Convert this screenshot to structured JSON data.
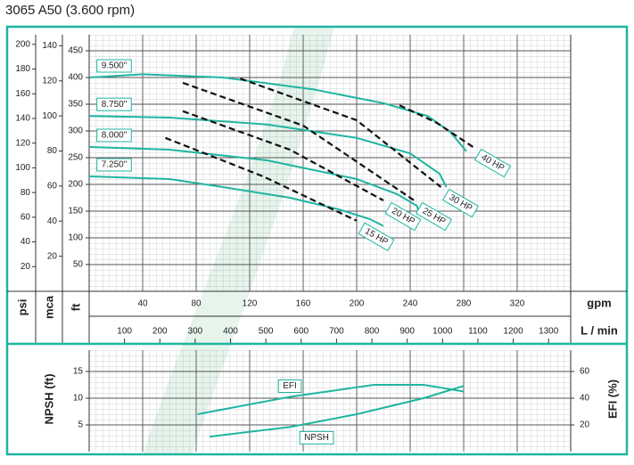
{
  "chart_data": [
    {
      "type": "line",
      "title": "3065 A50 (3.600 rpm)",
      "xlabel": "gpm",
      "xlim": [
        0,
        360
      ],
      "xticks": [
        40,
        80,
        120,
        160,
        200,
        240,
        280,
        320
      ],
      "x2label": "L / min",
      "x2lim": [
        0,
        1362.6
      ],
      "x2ticks": [
        100,
        200,
        300,
        400,
        500,
        600,
        700,
        800,
        900,
        1000,
        1100,
        1200,
        1300
      ],
      "ylabel": "ft",
      "ylim": [
        0,
        480
      ],
      "yticks": [
        50,
        100,
        150,
        200,
        250,
        300,
        350,
        400,
        450
      ],
      "y_axes": [
        {
          "label": "psi",
          "lim": [
            0,
            207.8
          ],
          "ticks": [
            20,
            40,
            60,
            80,
            100,
            120,
            140,
            160,
            180,
            200
          ]
        },
        {
          "label": "mca",
          "lim": [
            0,
            146.3
          ],
          "ticks": [
            20,
            40,
            60,
            80,
            100,
            120,
            140
          ]
        }
      ],
      "grid": true,
      "series": [
        {
          "name": "9.500\"",
          "color": "#1fb5a0",
          "x": [
            0,
            40,
            100,
            167,
            220,
            253,
            270,
            282
          ],
          "values": [
            400,
            406,
            400,
            378,
            352,
            328,
            298,
            262
          ]
        },
        {
          "name": "8.750\"",
          "color": "#1fb5a0",
          "x": [
            0,
            60,
            133,
            200,
            240,
            262,
            267
          ],
          "values": [
            328,
            325,
            312,
            287,
            258,
            220,
            195
          ]
        },
        {
          "name": "8.000\"",
          "color": "#1fb5a0",
          "x": [
            0,
            60,
            133,
            200,
            230,
            245,
            247
          ],
          "values": [
            270,
            265,
            245,
            210,
            182,
            160,
            145
          ]
        },
        {
          "name": "7.250\"",
          "color": "#1fb5a0",
          "x": [
            0,
            60,
            100,
            150,
            187,
            210,
            220
          ],
          "values": [
            215,
            210,
            195,
            175,
            153,
            135,
            122
          ]
        }
      ],
      "power_lines": [
        {
          "name": "15 HP",
          "color": "#111111",
          "x": [
            57,
            130,
            200
          ],
          "values": [
            287,
            215,
            132
          ]
        },
        {
          "name": "20 HP",
          "color": "#111111",
          "x": [
            70,
            150,
            220
          ],
          "values": [
            337,
            265,
            170
          ]
        },
        {
          "name": "25 HP",
          "color": "#111111",
          "x": [
            70,
            160,
            243
          ],
          "values": [
            390,
            310,
            170
          ]
        },
        {
          "name": "30 HP",
          "color": "#111111",
          "x": [
            113,
            200,
            263
          ],
          "values": [
            398,
            320,
            195
          ]
        },
        {
          "name": "40 HP",
          "color": "#111111",
          "x": [
            232,
            260,
            287
          ],
          "values": [
            348,
            315,
            270
          ]
        }
      ]
    },
    {
      "type": "line",
      "xlim": [
        0,
        360
      ],
      "ylabel": "NPSH (ft)",
      "ylim": [
        0,
        19
      ],
      "yticks": [
        5,
        10,
        15
      ],
      "y2label": "EFI (%)",
      "y2lim": [
        0,
        76
      ],
      "y2ticks": [
        20,
        40,
        60
      ],
      "grid": true,
      "series": [
        {
          "name": "EFI",
          "color": "#1fb5a0",
          "axis": "y2",
          "x": [
            81,
            150,
            213,
            250,
            280
          ],
          "values": [
            28,
            41,
            50,
            50,
            45
          ]
        },
        {
          "name": "NPSH",
          "color": "#1fb5a0",
          "x": [
            90,
            150,
            200,
            250,
            280
          ],
          "values": [
            2.8,
            4.6,
            7,
            10,
            12.3
          ]
        }
      ]
    }
  ]
}
